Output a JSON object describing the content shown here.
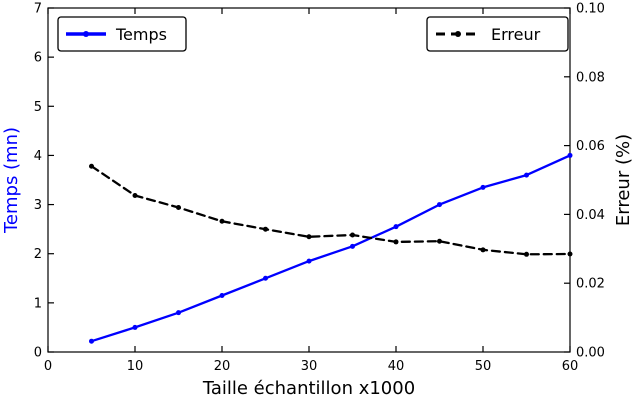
{
  "chart_data": {
    "type": "line",
    "title": "",
    "xlabel": "Taille échantillon x1000",
    "ylabel_left": "Temps (mn)",
    "ylabel_right": "Erreur (%)",
    "xlim": [
      0,
      60
    ],
    "ylim_left": [
      0,
      7
    ],
    "ylim_right": [
      0,
      0.1
    ],
    "xticks": [
      0,
      10,
      20,
      30,
      40,
      50,
      60
    ],
    "yticks_left": [
      0,
      1,
      2,
      3,
      4,
      5,
      6,
      7
    ],
    "yticks_right": [
      0.0,
      0.02,
      0.04,
      0.06,
      0.08,
      0.1
    ],
    "x": [
      5,
      10,
      15,
      20,
      25,
      30,
      35,
      40,
      45,
      50,
      55,
      60
    ],
    "series": [
      {
        "name": "Temps",
        "axis": "left",
        "color": "#0000ff",
        "style": "solid",
        "values": [
          0.22,
          0.5,
          0.8,
          1.15,
          1.5,
          1.85,
          2.15,
          2.55,
          3.0,
          3.35,
          3.6,
          4.0
        ]
      },
      {
        "name": "Erreur",
        "axis": "right",
        "color": "#000000",
        "style": "dashed",
        "values": [
          0.054,
          0.0455,
          0.042,
          0.038,
          0.0357,
          0.0335,
          0.034,
          0.032,
          0.0322,
          0.0297,
          0.0284,
          0.0285
        ]
      }
    ],
    "legend_position": {
      "temps": "upper-left",
      "erreur": "upper-right"
    },
    "grid": "off",
    "colors": {
      "temps_accent": "#0000ff",
      "erreur_accent": "#000000",
      "frame": "#000000"
    }
  }
}
